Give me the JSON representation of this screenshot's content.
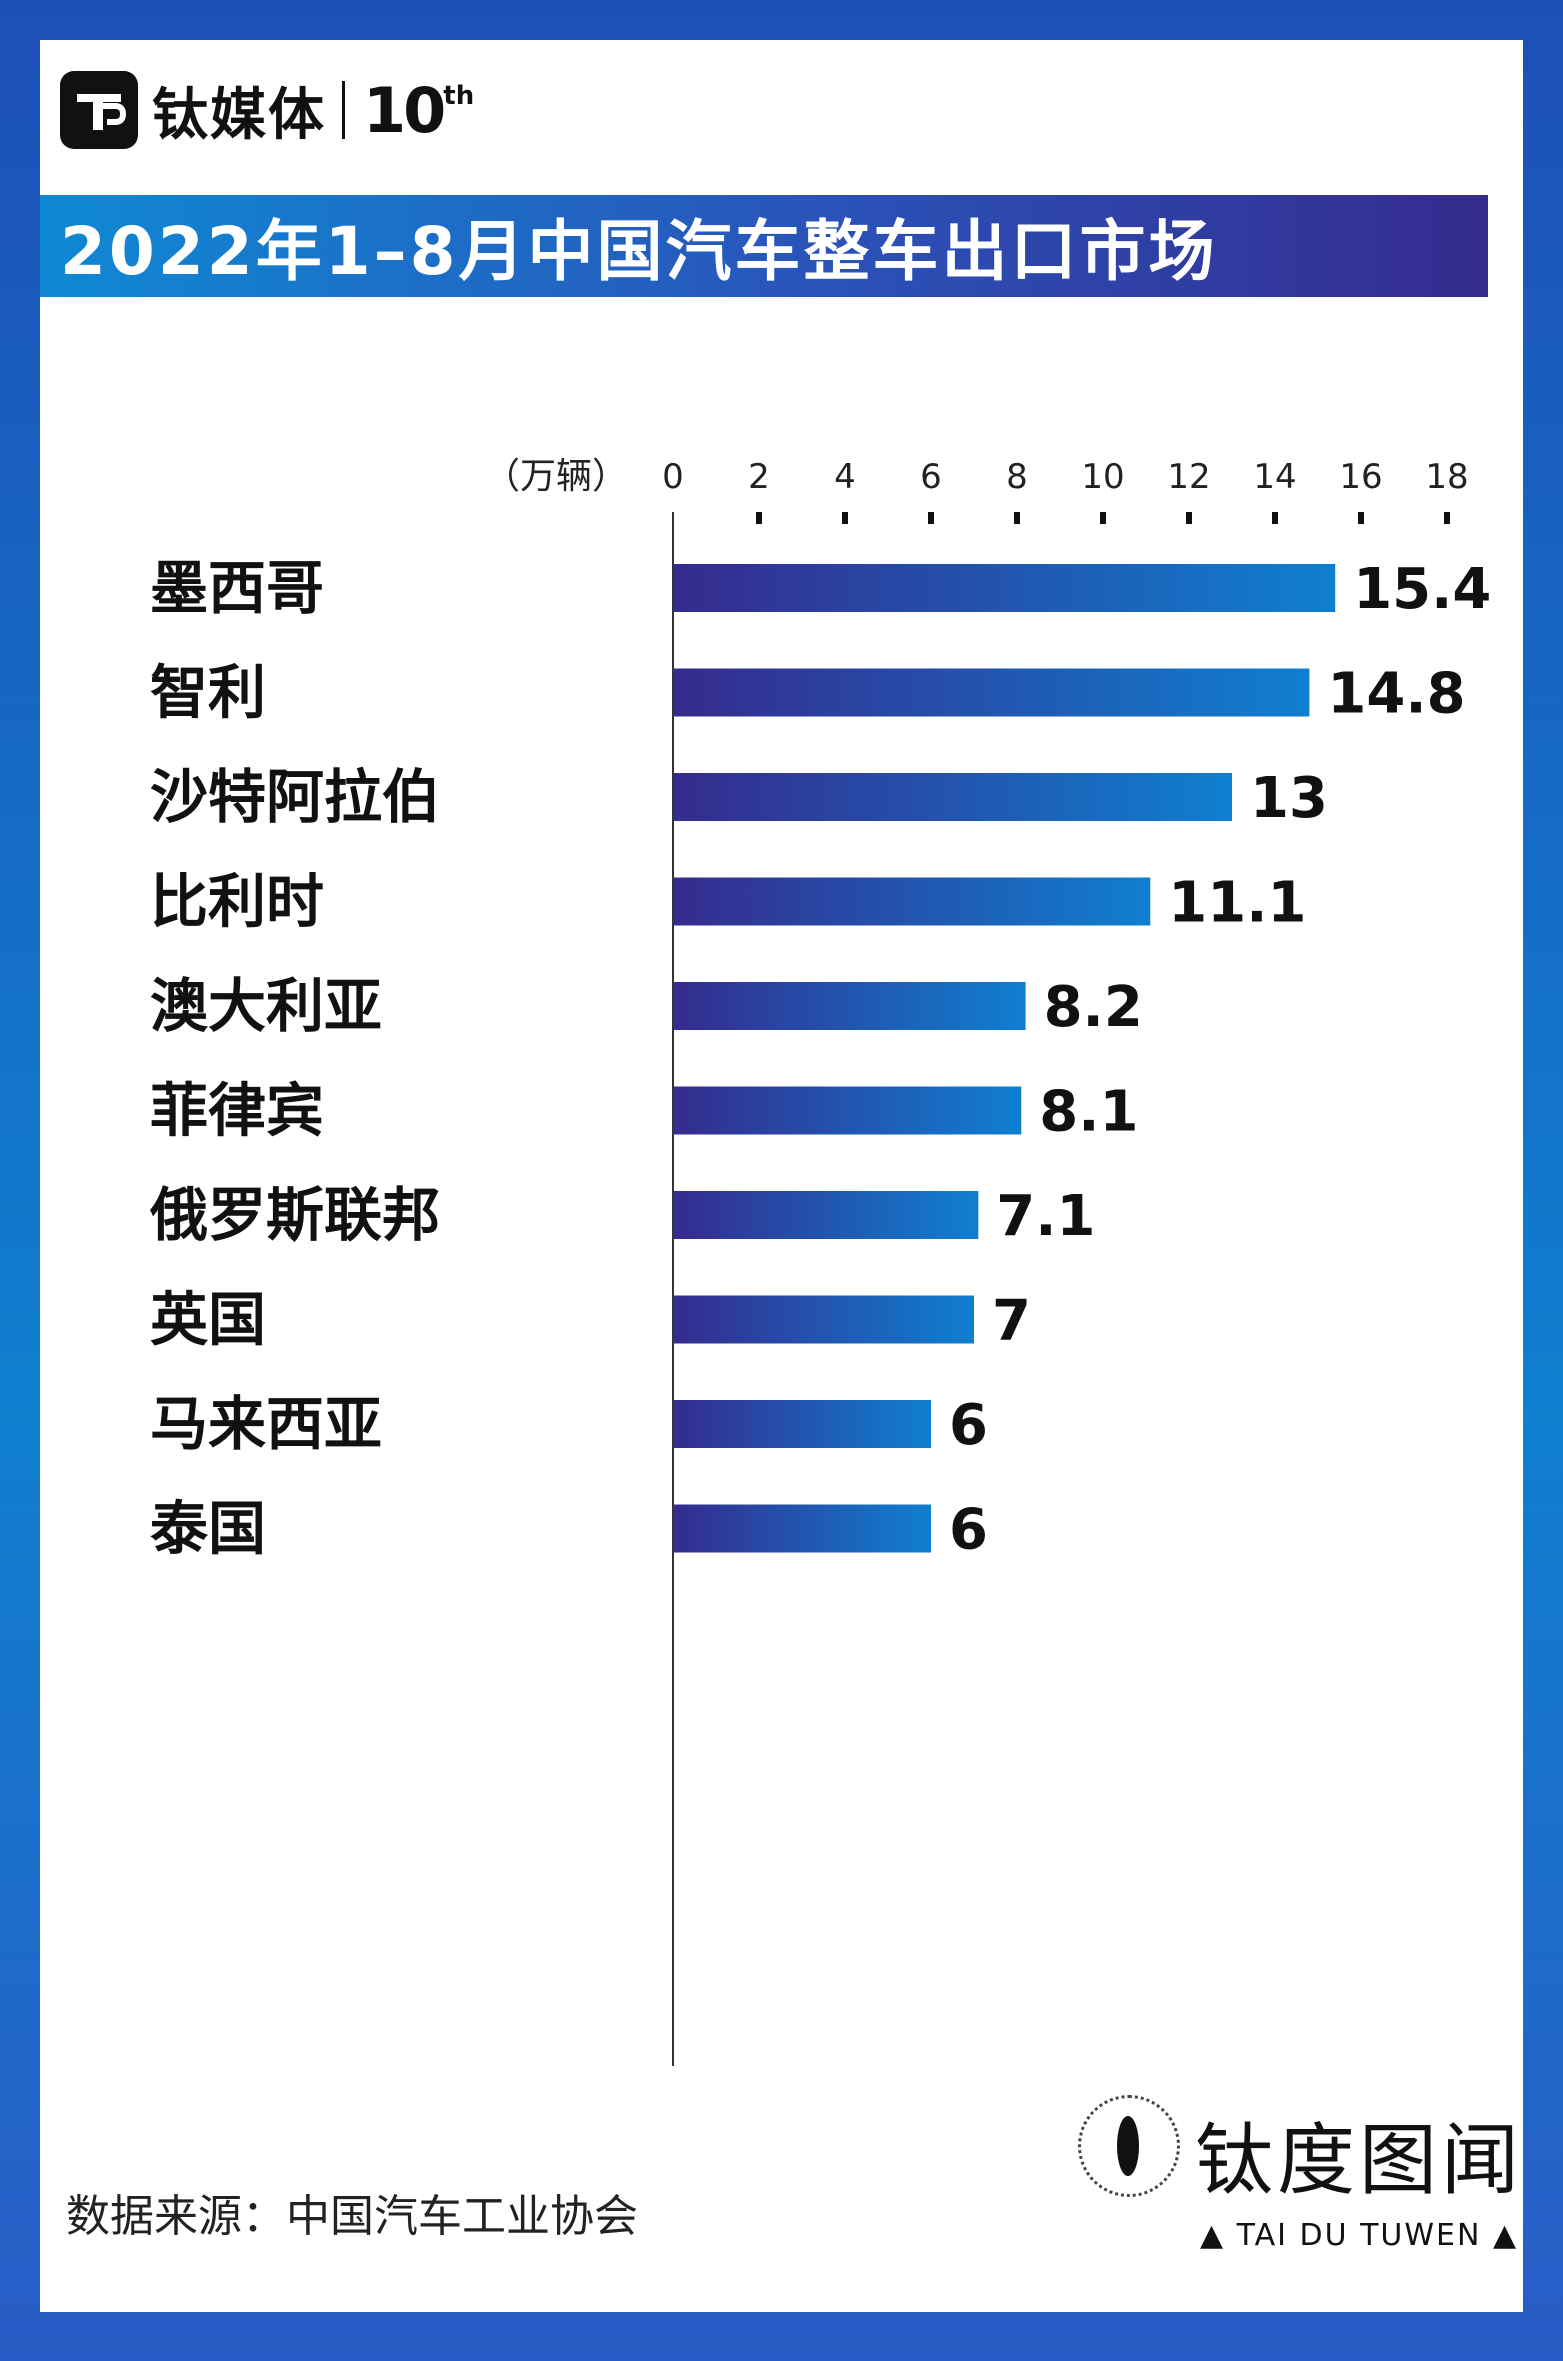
{
  "header": {
    "logo_text": "钛媒体",
    "logo_anniversary": "10",
    "logo_anniversary_sup": "th",
    "title": "2022年1–8月中国汽车整车出口市场"
  },
  "chart_data": {
    "type": "bar",
    "orientation": "horizontal",
    "title": "2022年1–8月中国汽车整车出口市场",
    "unit_label": "（万辆）",
    "xlim": [
      0,
      18
    ],
    "ticks": [
      0,
      2,
      4,
      6,
      8,
      10,
      12,
      14,
      16,
      18
    ],
    "categories": [
      "墨西哥",
      "智利",
      "沙特阿拉伯",
      "比利时",
      "澳大利亚",
      "菲律宾",
      "俄罗斯联邦",
      "英国",
      "马来西亚",
      "泰国"
    ],
    "values": [
      15.4,
      14.8,
      13,
      11.1,
      8.2,
      8.1,
      7.1,
      7,
      6,
      6
    ],
    "value_labels": [
      "15.4",
      "14.8",
      "13",
      "11.1",
      "8.2",
      "8.1",
      "7.1",
      "7",
      "6",
      "6"
    ],
    "bar_gradient": [
      "#352b8e",
      "#0f7fd0"
    ],
    "grid": false,
    "legend": "none"
  },
  "footer": {
    "source": "数据来源：中国汽车工业协会",
    "brand_name": "钛度图闻",
    "brand_sub": "▲ TAI DU TUWEN ▲"
  }
}
